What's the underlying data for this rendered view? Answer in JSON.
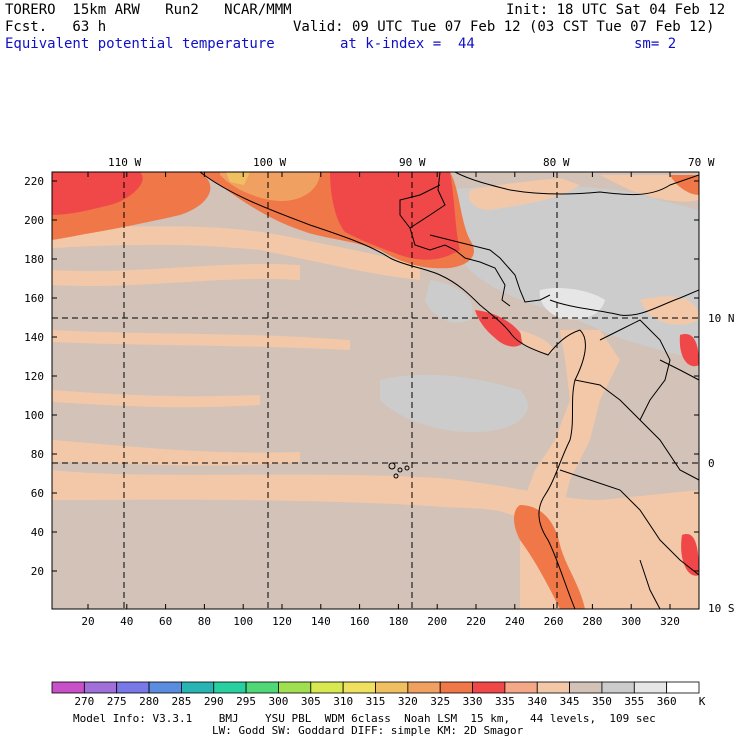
{
  "header": {
    "model": "TORERO  15km ARW   Run2   NCAR/MMM",
    "init": "Init: 18 UTC Sat 04 Feb 12",
    "fcst": "Fcst.   63 h",
    "valid": "Valid: 09 UTC Tue 07 Feb 12 (03 CST Tue 07 Feb 12)",
    "field": "Equivalent potential temperature",
    "level": "at k-index =  44",
    "smooth": "sm= 2"
  },
  "map": {
    "top_lon_labels": [
      "110 W",
      "100 W",
      "90 W",
      "80 W",
      "70 W"
    ],
    "right_lat_labels": [
      "10 N",
      "0",
      "10 S"
    ],
    "left_y_ticks": [
      "220",
      "200",
      "180",
      "160",
      "140",
      "120",
      "100",
      "80",
      "60",
      "40",
      "20"
    ],
    "bottom_x_ticks": [
      "20",
      "40",
      "60",
      "80",
      "100",
      "120",
      "140",
      "160",
      "180",
      "200",
      "220",
      "240",
      "260",
      "280",
      "300",
      "320"
    ]
  },
  "colorbar": {
    "labels": [
      "270",
      "275",
      "280",
      "285",
      "290",
      "295",
      "300",
      "305",
      "310",
      "315",
      "320",
      "325",
      "330",
      "335",
      "340",
      "345",
      "350",
      "355",
      "360"
    ],
    "unit": "K",
    "colors": [
      "#c850c8",
      "#a070d8",
      "#7878e8",
      "#5a8ce0",
      "#28b4b4",
      "#28d0a0",
      "#50d878",
      "#a0e050",
      "#d8e850",
      "#f0e060",
      "#f0c060",
      "#f0a060",
      "#f07848",
      "#f04848",
      "#f4a888",
      "#f2c8a8",
      "#d2c2b8",
      "#cccccc",
      "#e6e6e6",
      "#ffffff"
    ]
  },
  "footer": {
    "line1": "Model Info: V3.3.1    BMJ    YSU PBL  WDM 6class  Noah LSM  15 km,   44 levels,  109 sec",
    "line2": "LW: Godd SW: Goddard DIFF: simple KM: 2D Smagor"
  }
}
